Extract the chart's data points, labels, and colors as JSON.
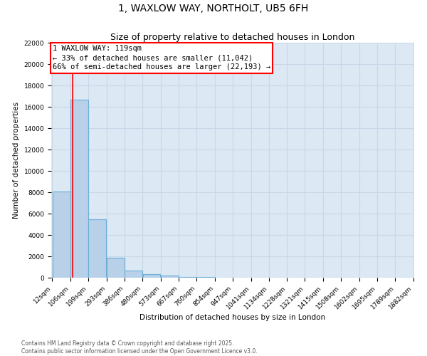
{
  "title": "1, WAXLOW WAY, NORTHOLT, UB5 6FH",
  "subtitle": "Size of property relative to detached houses in London",
  "xlabel": "Distribution of detached houses by size in London",
  "ylabel": "Number of detached properties",
  "bar_values": [
    8100,
    16700,
    5500,
    1900,
    650,
    350,
    200,
    100,
    50,
    30,
    15,
    8,
    5,
    3,
    2,
    1,
    1,
    0,
    0,
    0
  ],
  "bin_edges": [
    12,
    106,
    199,
    293,
    386,
    480,
    573,
    667,
    760,
    854,
    947,
    1041,
    1134,
    1228,
    1321,
    1415,
    1508,
    1602,
    1695,
    1789,
    1882
  ],
  "bar_color": "#b8d0e8",
  "bar_edge_color": "#6baed6",
  "grid_color": "#c8d8e8",
  "bg_color": "#dce8f4",
  "red_line_x": 119,
  "annotation_text_line1": "1 WAXLOW WAY: 119sqm",
  "annotation_text_line2": "← 33% of detached houses are smaller (11,042)",
  "annotation_text_line3": "66% of semi-detached houses are larger (22,193) →",
  "annotation_box_color": "white",
  "annotation_box_edge": "red",
  "ylim": [
    0,
    22000
  ],
  "footer": "Contains HM Land Registry data © Crown copyright and database right 2025.\nContains public sector information licensed under the Open Government Licence v3.0.",
  "title_fontsize": 10,
  "subtitle_fontsize": 9,
  "tick_fontsize": 6.5,
  "ylabel_fontsize": 7.5,
  "xlabel_fontsize": 7.5,
  "annotation_fontsize": 7.5,
  "footer_fontsize": 5.5
}
